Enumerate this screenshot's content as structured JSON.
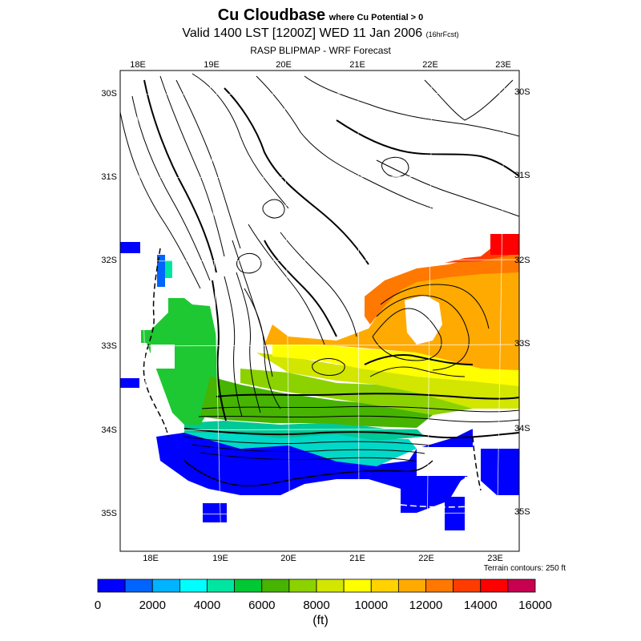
{
  "title": {
    "main": "Cu Cloudbase",
    "qualifier": "where Cu Potential > 0"
  },
  "valid": {
    "main": "Valid 1400 LST [1200Z] WED 11 Jan 2006",
    "fcst": "(16hrFcst)"
  },
  "subtitle": "RASP BLIPMAP - WRF Forecast",
  "map": {
    "top_lon_labels": [
      "18E",
      "19E",
      "20E",
      "21E",
      "22E",
      "23E"
    ],
    "bottom_lon_labels": [
      "18E",
      "19E",
      "20E",
      "21E",
      "22E",
      "23E"
    ],
    "left_lat_labels": [
      "30S",
      "31S",
      "32S",
      "33S",
      "34S",
      "35S"
    ],
    "right_lat_labels": [
      "30S",
      "31S",
      "32S",
      "33S",
      "34S",
      "35S"
    ]
  },
  "terrain_note": "Terrain contours: 250 ft",
  "colorbar": {
    "colors": [
      "#0000ff",
      "#0064ff",
      "#00b4ff",
      "#00ffff",
      "#00e6a0",
      "#00c832",
      "#46b400",
      "#8cd200",
      "#d2e600",
      "#ffff00",
      "#ffd200",
      "#ffaa00",
      "#ff7800",
      "#ff3c00",
      "#ff0000",
      "#c80050"
    ],
    "tick_labels": [
      "0",
      "2000",
      "4000",
      "6000",
      "8000",
      "10000",
      "12000",
      "14000",
      "16000"
    ],
    "unit": "(ft)"
  }
}
